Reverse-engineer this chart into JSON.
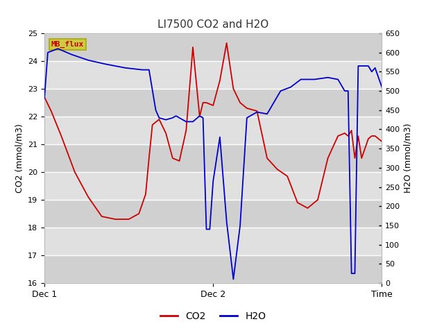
{
  "title": "LI7500 CO2 and H2O",
  "ylabel_left": "CO2 (mmol/m3)",
  "ylabel_right": "H2O (mmol/m3)",
  "co2_ylim": [
    16.0,
    25.0
  ],
  "h2o_ylim": [
    0,
    650
  ],
  "fig_bg_color": "#ffffff",
  "plot_bg_color": "#e0e0e0",
  "co2_color": "#cc0000",
  "h2o_color": "#0000cc",
  "legend_box_facecolor": "#cccc44",
  "legend_box_edgecolor": "#aaaa00",
  "legend_box_text": "MB_flux",
  "legend_box_textcolor": "#cc0000",
  "xtick_positions": [
    0.0,
    0.5,
    1.0
  ],
  "xtick_labels": [
    "Dec 1",
    "Dec 2",
    "Time"
  ],
  "co2_yticks": [
    16.0,
    17.0,
    18.0,
    19.0,
    20.0,
    21.0,
    22.0,
    23.0,
    24.0,
    25.0
  ],
  "h2o_yticks": [
    0,
    50,
    100,
    150,
    200,
    250,
    300,
    350,
    400,
    450,
    500,
    550,
    600,
    650
  ],
  "grid_color": "#ffffff",
  "alt_band_color": "#d0d0d0",
  "co2_x": [
    0.0,
    0.02,
    0.05,
    0.09,
    0.13,
    0.17,
    0.21,
    0.25,
    0.28,
    0.3,
    0.31,
    0.32,
    0.33,
    0.34,
    0.36,
    0.38,
    0.4,
    0.42,
    0.44,
    0.46,
    0.47,
    0.48,
    0.5,
    0.52,
    0.54,
    0.56,
    0.58,
    0.6,
    0.63,
    0.66,
    0.69,
    0.72,
    0.75,
    0.78,
    0.81,
    0.84,
    0.87,
    0.89,
    0.9,
    0.91,
    0.92,
    0.93,
    0.94,
    0.96,
    0.97,
    0.98,
    1.0
  ],
  "co2_y": [
    22.7,
    22.2,
    21.3,
    20.0,
    19.1,
    18.4,
    18.3,
    18.3,
    18.5,
    19.2,
    20.5,
    21.7,
    21.8,
    21.9,
    21.4,
    20.5,
    20.4,
    21.5,
    24.5,
    22.0,
    22.5,
    22.5,
    22.4,
    23.3,
    24.65,
    23.0,
    22.5,
    22.3,
    22.2,
    20.5,
    20.1,
    19.85,
    18.9,
    18.7,
    19.0,
    20.5,
    21.3,
    21.4,
    21.3,
    21.5,
    20.5,
    21.3,
    20.5,
    21.2,
    21.3,
    21.3,
    21.1
  ],
  "h2o_x": [
    0.0,
    0.01,
    0.04,
    0.08,
    0.13,
    0.18,
    0.24,
    0.29,
    0.31,
    0.33,
    0.34,
    0.36,
    0.38,
    0.39,
    0.4,
    0.42,
    0.44,
    0.46,
    0.47,
    0.48,
    0.49,
    0.5,
    0.52,
    0.54,
    0.56,
    0.58,
    0.6,
    0.63,
    0.66,
    0.7,
    0.73,
    0.76,
    0.8,
    0.84,
    0.87,
    0.89,
    0.9,
    0.91,
    0.92,
    0.93,
    0.94,
    0.96,
    0.97,
    0.98,
    1.0
  ],
  "h2o_y": [
    480,
    600,
    610,
    595,
    580,
    570,
    560,
    555,
    555,
    450,
    430,
    425,
    430,
    435,
    430,
    420,
    420,
    435,
    430,
    140,
    140,
    265,
    380,
    160,
    10,
    150,
    430,
    445,
    440,
    500,
    510,
    530,
    530,
    535,
    530,
    500,
    500,
    25,
    25,
    565,
    565,
    565,
    550,
    560,
    510
  ]
}
